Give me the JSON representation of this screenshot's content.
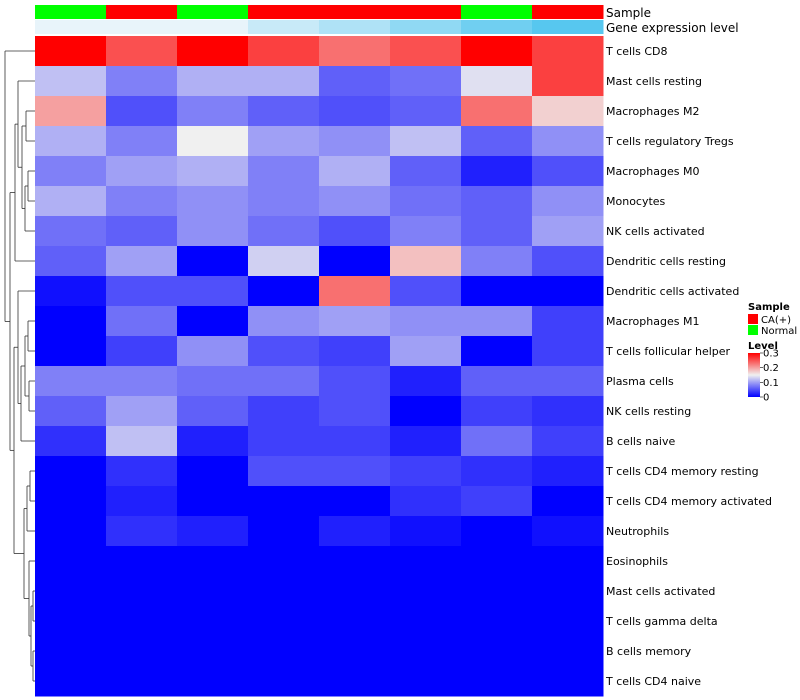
{
  "chart_data": {
    "type": "heatmap",
    "title": "",
    "annotation_tracks": [
      {
        "name": "Sample",
        "values": [
          "Normal",
          "CA(+)",
          "Normal",
          "CA(+)",
          "CA(+)",
          "CA(+)",
          "Normal",
          "CA(+)"
        ]
      },
      {
        "name": "Gene expression level",
        "values": [
          0.07,
          0.07,
          0.07,
          0.12,
          0.16,
          0.21,
          0.26,
          0.3
        ]
      }
    ],
    "rows": [
      "T cells CD8",
      "Mast cells resting",
      "Macrophages M2",
      "T cells regulatory  Tregs",
      "Macrophages M0",
      "Monocytes",
      "NK cells activated",
      "Dendritic cells resting",
      "Dendritic cells activated",
      "Macrophages M1",
      "T cells follicular helper",
      "Plasma cells",
      "NK cells resting",
      "B cells naive",
      "T cells CD4 memory resting",
      "T cells CD4 memory activated",
      "Neutrophils",
      "Eosinophils",
      "Mast cells activated",
      "T cells gamma delta",
      "B cells memory",
      "T cells CD4 naive"
    ],
    "values": [
      [
        0.3,
        0.25,
        0.3,
        0.26,
        0.23,
        0.25,
        0.3,
        0.26
      ],
      [
        0.12,
        0.08,
        0.11,
        0.11,
        0.06,
        0.07,
        0.14,
        0.26
      ],
      [
        0.2,
        0.05,
        0.08,
        0.06,
        0.05,
        0.06,
        0.23,
        0.17
      ],
      [
        0.11,
        0.08,
        0.15,
        0.1,
        0.09,
        0.12,
        0.06,
        0.09
      ],
      [
        0.08,
        0.1,
        0.11,
        0.08,
        0.11,
        0.06,
        0.02,
        0.05
      ],
      [
        0.11,
        0.08,
        0.09,
        0.08,
        0.09,
        0.07,
        0.06,
        0.09
      ],
      [
        0.07,
        0.06,
        0.09,
        0.07,
        0.05,
        0.08,
        0.06,
        0.1
      ],
      [
        0.06,
        0.1,
        0.0,
        0.13,
        0.0,
        0.18,
        0.08,
        0.05
      ],
      [
        0.01,
        0.05,
        0.05,
        0.0,
        0.23,
        0.05,
        0.0,
        0.0
      ],
      [
        0.0,
        0.07,
        0.0,
        0.09,
        0.1,
        0.09,
        0.09,
        0.04
      ],
      [
        0.0,
        0.04,
        0.09,
        0.05,
        0.04,
        0.1,
        0.0,
        0.04
      ],
      [
        0.08,
        0.08,
        0.07,
        0.07,
        0.05,
        0.02,
        0.06,
        0.06
      ],
      [
        0.06,
        0.1,
        0.06,
        0.04,
        0.05,
        0.0,
        0.04,
        0.03
      ],
      [
        0.03,
        0.12,
        0.02,
        0.04,
        0.04,
        0.02,
        0.07,
        0.04
      ],
      [
        0.0,
        0.03,
        0.0,
        0.05,
        0.05,
        0.04,
        0.03,
        0.02
      ],
      [
        0.0,
        0.02,
        0.0,
        0.0,
        0.0,
        0.03,
        0.04,
        0.0
      ],
      [
        0.0,
        0.03,
        0.02,
        0.0,
        0.02,
        0.01,
        0.0,
        0.01
      ],
      [
        0.0,
        0.0,
        0.0,
        0.0,
        0.0,
        0.0,
        0.0,
        0.0
      ],
      [
        0.0,
        0.0,
        0.0,
        0.0,
        0.0,
        0.0,
        0.0,
        0.0
      ],
      [
        0.0,
        0.0,
        0.0,
        0.0,
        0.0,
        0.0,
        0.0,
        0.0
      ],
      [
        0.0,
        0.0,
        0.0,
        0.0,
        0.0,
        0.0,
        0.0,
        0.0
      ],
      [
        0.0,
        0.0,
        0.0,
        0.0,
        0.0,
        0.0,
        0.0,
        0.0
      ]
    ],
    "value_range": [
      0,
      0.3
    ],
    "colors": {
      "low": "#0000ff",
      "mid": "#f0f0f0",
      "high": "#ff0000"
    },
    "legend": {
      "sample_title": "Sample",
      "sample_items": [
        {
          "label": "CA(+)",
          "color": "#ff0000"
        },
        {
          "label": "Normal",
          "color": "#00ff00"
        }
      ],
      "level_title": "Level",
      "level_ticks": [
        "0.3",
        "0.2",
        "0.1",
        "0"
      ],
      "level_tick_values": [
        0.3,
        0.2,
        0.1,
        0
      ]
    },
    "annotation_colors": {
      "expr_low": "#e8f4fa",
      "expr_high": "#57c7ef"
    }
  }
}
